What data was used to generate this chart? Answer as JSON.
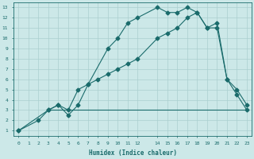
{
  "xlabel": "Humidex (Indice chaleur)",
  "bg_color": "#cce8e8",
  "grid_color": "#aacfcf",
  "line_color": "#1a6b6b",
  "xlim": [
    -0.5,
    23.5
  ],
  "ylim": [
    0.5,
    13.5
  ],
  "xticks": [
    0,
    1,
    2,
    3,
    4,
    5,
    6,
    7,
    8,
    9,
    10,
    11,
    12,
    14,
    15,
    16,
    17,
    18,
    19,
    20,
    21,
    22,
    23
  ],
  "yticks": [
    1,
    2,
    3,
    4,
    5,
    6,
    7,
    8,
    9,
    10,
    11,
    12,
    13
  ],
  "line1_x": [
    0,
    2,
    3,
    4,
    5,
    6,
    7,
    9,
    10,
    11,
    12,
    14,
    15,
    16,
    17,
    18,
    19,
    20,
    21,
    22,
    23
  ],
  "line1_y": [
    1,
    2,
    3,
    3.5,
    2.5,
    3.5,
    5.5,
    9,
    10,
    11.5,
    12,
    13,
    12.5,
    12.5,
    13,
    12.5,
    11,
    11.5,
    6,
    4.5,
    3
  ],
  "line2_x": [
    0,
    3,
    4,
    5,
    6,
    7,
    8,
    9,
    10,
    11,
    12,
    14,
    15,
    16,
    17,
    18,
    19,
    20,
    21,
    22,
    23
  ],
  "line2_y": [
    1,
    3,
    3.5,
    3,
    5,
    5.5,
    6,
    6.5,
    7,
    7.5,
    8,
    10,
    10.5,
    11,
    12,
    12.5,
    11,
    11,
    6,
    5,
    3.5
  ],
  "line3_x": [
    3,
    23
  ],
  "line3_y": [
    3,
    3
  ]
}
